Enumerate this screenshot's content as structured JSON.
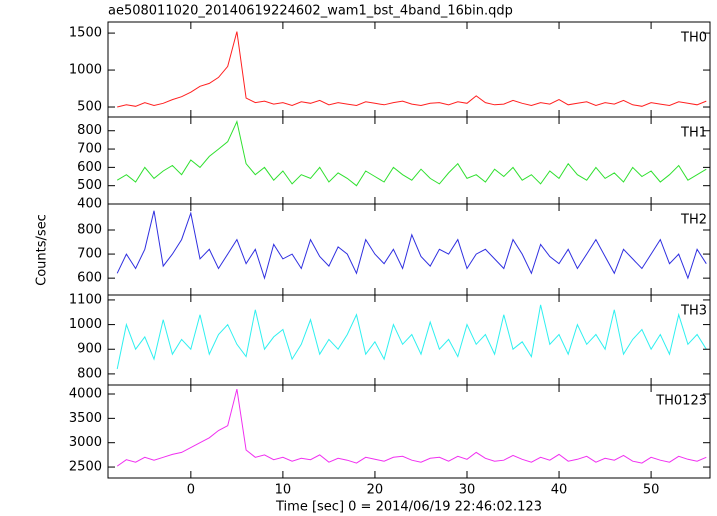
{
  "chart_data": {
    "type": "line",
    "title": "ae508011020_20140619224602_wam1_bst_4band_16bin.qdp",
    "xlabel": "Time [sec] 0 = 2014/06/19 22:46:02.123",
    "ylabel": "Counts/sec",
    "xlim": [
      -9,
      56.4
    ],
    "xticks": [
      0,
      10,
      20,
      30,
      40,
      50
    ],
    "x": [
      -8,
      -7,
      -6,
      -5,
      -4,
      -3,
      -2,
      -1,
      0,
      1,
      2,
      3,
      4,
      5,
      6,
      7,
      8,
      9,
      10,
      11,
      12,
      13,
      14,
      15,
      16,
      17,
      18,
      19,
      20,
      21,
      22,
      23,
      24,
      25,
      26,
      27,
      28,
      29,
      30,
      31,
      32,
      33,
      34,
      35,
      36,
      37,
      38,
      39,
      40,
      41,
      42,
      43,
      44,
      45,
      46,
      47,
      48,
      49,
      50,
      51,
      52,
      53,
      54,
      55,
      56
    ],
    "series": [
      {
        "name": "TH0",
        "color": "#ff2020",
        "ylim": [
          365,
          1650
        ],
        "yticks": [
          500,
          1000,
          1500
        ],
        "values": [
          500,
          530,
          510,
          560,
          520,
          550,
          600,
          640,
          700,
          780,
          820,
          900,
          1050,
          1520,
          620,
          560,
          580,
          540,
          560,
          520,
          570,
          550,
          590,
          530,
          560,
          540,
          520,
          570,
          550,
          530,
          560,
          580,
          540,
          520,
          550,
          560,
          530,
          570,
          550,
          650,
          560,
          530,
          540,
          590,
          550,
          520,
          560,
          540,
          600,
          530,
          550,
          570,
          520,
          560,
          540,
          590,
          530,
          510,
          560,
          540,
          520,
          570,
          550,
          530,
          580
        ]
      },
      {
        "name": "TH1",
        "color": "#30e030",
        "ylim": [
          400,
          875
        ],
        "yticks": [
          400,
          500,
          600,
          700,
          800
        ],
        "values": [
          530,
          560,
          520,
          600,
          540,
          580,
          610,
          560,
          640,
          600,
          660,
          700,
          740,
          850,
          620,
          560,
          600,
          530,
          580,
          510,
          560,
          540,
          600,
          520,
          570,
          540,
          500,
          580,
          550,
          520,
          600,
          560,
          530,
          590,
          540,
          510,
          570,
          620,
          540,
          560,
          520,
          590,
          550,
          600,
          530,
          560,
          510,
          580,
          540,
          620,
          560,
          530,
          600,
          540,
          570,
          520,
          600,
          550,
          580,
          520,
          560,
          610,
          530,
          560,
          590
        ]
      },
      {
        "name": "TH2",
        "color": "#3030e0",
        "ylim": [
          530,
          908
        ],
        "yticks": [
          600,
          700,
          800
        ],
        "values": [
          620,
          700,
          640,
          720,
          880,
          650,
          700,
          760,
          870,
          680,
          720,
          640,
          700,
          760,
          660,
          720,
          600,
          740,
          680,
          700,
          640,
          760,
          690,
          650,
          730,
          700,
          620,
          760,
          700,
          660,
          720,
          640,
          780,
          690,
          650,
          720,
          700,
          760,
          640,
          700,
          720,
          680,
          640,
          760,
          700,
          620,
          740,
          690,
          660,
          720,
          640,
          700,
          760,
          690,
          620,
          720,
          680,
          640,
          700,
          760,
          660,
          700,
          600,
          720,
          660
        ]
      },
      {
        "name": "TH3",
        "color": "#30f0f0",
        "ylim": [
          755,
          1120
        ],
        "yticks": [
          800,
          900,
          1000,
          1100
        ],
        "values": [
          820,
          1000,
          900,
          950,
          860,
          1020,
          880,
          940,
          900,
          1040,
          880,
          960,
          1000,
          920,
          870,
          1060,
          900,
          950,
          980,
          860,
          920,
          1020,
          880,
          940,
          900,
          960,
          1040,
          880,
          930,
          860,
          1000,
          920,
          960,
          880,
          1010,
          900,
          940,
          870,
          1000,
          920,
          960,
          880,
          1040,
          900,
          930,
          870,
          1080,
          920,
          960,
          880,
          1000,
          920,
          960,
          900,
          1060,
          880,
          940,
          980,
          900,
          960,
          880,
          1040,
          920,
          960,
          900
        ]
      },
      {
        "name": "TH0123",
        "color": "#f030f0",
        "ylim": [
          2275,
          4185
        ],
        "yticks": [
          2500,
          3000,
          3500,
          4000
        ],
        "values": [
          2520,
          2650,
          2600,
          2700,
          2640,
          2700,
          2760,
          2800,
          2900,
          3000,
          3100,
          3250,
          3350,
          4100,
          2850,
          2700,
          2750,
          2650,
          2700,
          2620,
          2680,
          2650,
          2750,
          2600,
          2680,
          2640,
          2580,
          2700,
          2660,
          2620,
          2700,
          2720,
          2640,
          2600,
          2680,
          2700,
          2620,
          2720,
          2660,
          2800,
          2680,
          2620,
          2640,
          2740,
          2660,
          2600,
          2700,
          2640,
          2760,
          2620,
          2660,
          2720,
          2600,
          2680,
          2640,
          2740,
          2620,
          2580,
          2700,
          2640,
          2600,
          2720,
          2660,
          2620,
          2700
        ]
      }
    ]
  }
}
